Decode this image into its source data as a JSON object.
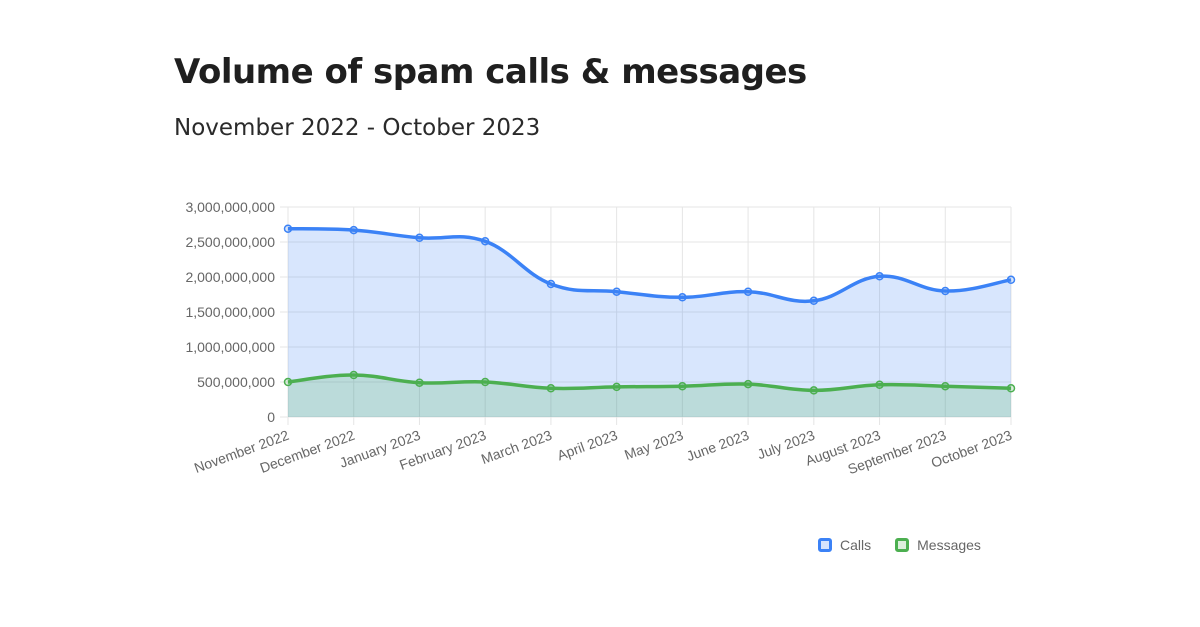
{
  "header": {
    "title": "Volume of spam calls & messages",
    "subtitle": "November 2022 - October 2023"
  },
  "legend": [
    {
      "label": "Calls",
      "color": "#3b82f6",
      "fill": "#d6e4fd"
    },
    {
      "label": "Messages",
      "color": "#4caf50",
      "fill": "#dcefdc"
    }
  ],
  "chart_data": {
    "type": "area",
    "title": "Volume of spam calls & messages",
    "subtitle": "November 2022 - October 2023",
    "xlabel": "",
    "ylabel": "",
    "ylim": [
      0,
      3000000000
    ],
    "yticks": [
      0,
      500000000,
      1000000000,
      1500000000,
      2000000000,
      2500000000,
      3000000000
    ],
    "ytick_labels": [
      "0",
      "500,000,000",
      "1,000,000,000",
      "1,500,000,000",
      "2,000,000,000",
      "2,500,000,000",
      "3,000,000,000"
    ],
    "categories": [
      "November 2022",
      "December 2022",
      "January 2023",
      "February 2023",
      "March 2023",
      "April 2023",
      "May 2023",
      "June 2023",
      "July 2023",
      "August 2023",
      "September 2023",
      "October 2023"
    ],
    "series": [
      {
        "name": "Calls",
        "color": "#3b82f6",
        "fill": "rgba(59,130,246,0.2)",
        "values": [
          2690000000,
          2670000000,
          2560000000,
          2510000000,
          1900000000,
          1790000000,
          1710000000,
          1790000000,
          1660000000,
          2010000000,
          1800000000,
          1960000000
        ]
      },
      {
        "name": "Messages",
        "color": "#4caf50",
        "fill": "rgba(76,175,80,0.2)",
        "values": [
          500000000,
          600000000,
          490000000,
          500000000,
          410000000,
          430000000,
          440000000,
          470000000,
          380000000,
          460000000,
          440000000,
          410000000
        ]
      }
    ],
    "grid": true,
    "legend_position": "bottom-right"
  }
}
